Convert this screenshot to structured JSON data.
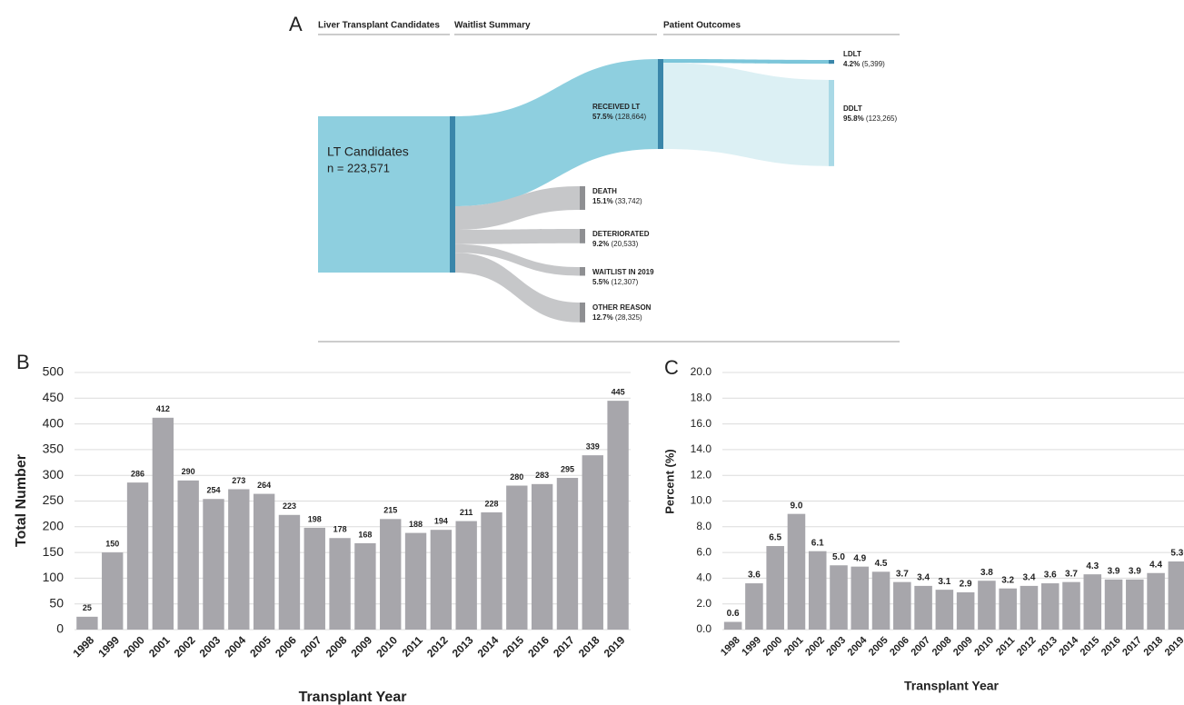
{
  "chart_data": [
    {
      "type": "sankey",
      "panel_label": "A",
      "columns": [
        "Liver Transplant Candidates",
        "Waitlist Summary",
        "Patient Outcomes"
      ],
      "source": {
        "name": "LT Candidates",
        "label": "n = 223,571",
        "value": 223571,
        "color": "#8ecfdf",
        "node_color": "#3a86aa"
      },
      "categories": [
        "RECEIVED LT",
        "DEATH",
        "DETERIORATED",
        "WAITLIST IN 2019",
        "OTHER REASON"
      ],
      "values": [
        128664,
        33742,
        20533,
        12307,
        28325
      ],
      "value_labels": [
        "(128,664)",
        "(33,742)",
        "(20,533)",
        "(12,307)",
        "(28,325)"
      ],
      "percents": [
        57.5,
        15.1,
        9.2,
        5.5,
        12.7
      ],
      "percent_labels": [
        "57.5%",
        "15.1%",
        "9.2%",
        "5.5%",
        "12.7%"
      ],
      "colors": [
        "#8ecfdf",
        "#c6c7c9",
        "#c6c7c9",
        "#c6c7c9",
        "#c6c7c9"
      ],
      "node_colors": [
        "#3a86aa",
        "#8e8f92",
        "#8e8f92",
        "#8e8f92",
        "#8e8f92"
      ],
      "outcomes": {
        "categories": [
          "LDLT",
          "DDLT"
        ],
        "values": [
          5399,
          123265
        ],
        "value_labels": [
          "(5,399)",
          "(123,265)"
        ],
        "percents": [
          4.2,
          95.8
        ],
        "percent_labels": [
          "4.2%",
          "95.8%"
        ],
        "colors": [
          "#7cc6da",
          "#dcf0f4"
        ],
        "node_colors": [
          "#3a86aa",
          "#a9d9e6"
        ]
      }
    },
    {
      "type": "bar",
      "panel_label": "B",
      "xlabel": "Transplant Year",
      "ylabel": "Total Number",
      "categories": [
        "1998",
        "1999",
        "2000",
        "2001",
        "2002",
        "2003",
        "2004",
        "2005",
        "2006",
        "2007",
        "2008",
        "2009",
        "2010",
        "2011",
        "2012",
        "2013",
        "2014",
        "2015",
        "2016",
        "2017",
        "2018",
        "2019"
      ],
      "values": [
        25,
        150,
        286,
        412,
        290,
        254,
        273,
        264,
        223,
        198,
        178,
        168,
        215,
        188,
        194,
        211,
        228,
        280,
        283,
        295,
        339,
        445
      ],
      "color": "#a7a6ab",
      "ylim": [
        0,
        500
      ],
      "yticks": [
        0,
        50,
        100,
        150,
        200,
        250,
        300,
        350,
        400,
        450,
        500
      ],
      "grid": true
    },
    {
      "type": "bar",
      "panel_label": "C",
      "xlabel": "Transplant Year",
      "ylabel": "Percent (%)",
      "categories": [
        "1998",
        "1999",
        "2000",
        "2001",
        "2002",
        "2003",
        "2004",
        "2005",
        "2006",
        "2007",
        "2008",
        "2009",
        "2010",
        "2011",
        "2012",
        "2013",
        "2014",
        "2015",
        "2016",
        "2017",
        "2018",
        "2019"
      ],
      "values": [
        0.6,
        3.6,
        6.5,
        9.0,
        6.1,
        5.0,
        4.9,
        4.5,
        3.7,
        3.4,
        3.1,
        2.9,
        3.8,
        3.2,
        3.4,
        3.6,
        3.7,
        4.3,
        3.9,
        3.9,
        4.4,
        5.3
      ],
      "value_labels": [
        "0.6",
        "3.6",
        "6.5",
        "9.0",
        "6.1",
        "5.0",
        "4.9",
        "4.5",
        "3.7",
        "3.4",
        "3.1",
        "2.9",
        "3.8",
        "3.2",
        "3.4",
        "3.6",
        "3.7",
        "4.3",
        "3.9",
        "3.9",
        "4.4",
        "5.3"
      ],
      "color": "#a7a6ab",
      "ylim": [
        0,
        20
      ],
      "yticks": [
        {
          "value": 0,
          "label": "0.0"
        },
        {
          "value": 2,
          "label": "2.0"
        },
        {
          "value": 4,
          "label": "4.0"
        },
        {
          "value": 6,
          "label": "6.0"
        },
        {
          "value": 8,
          "label": "8.0"
        },
        {
          "value": 10,
          "label": "10.0"
        },
        {
          "value": 12,
          "label": "12.0"
        },
        {
          "value": 14,
          "label": "14.0"
        },
        {
          "value": 16,
          "label": "16.0"
        },
        {
          "value": 18,
          "label": "18.0"
        },
        {
          "value": 20,
          "label": "20.0"
        }
      ],
      "grid": true
    }
  ]
}
